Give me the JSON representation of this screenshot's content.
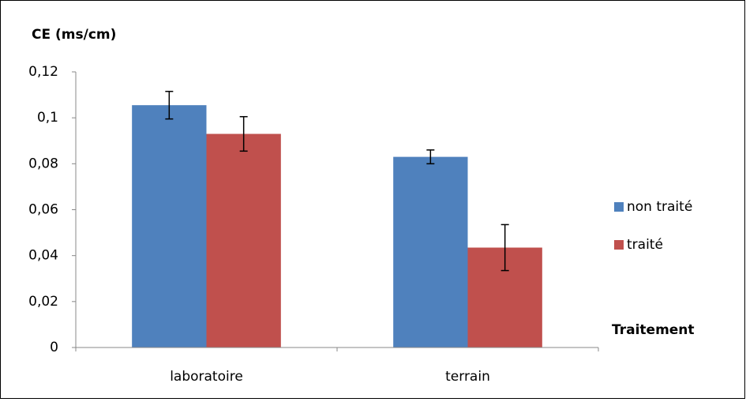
{
  "chart_data": {
    "type": "bar",
    "y_label": "CE (ms/cm)",
    "x_label": "Traitement",
    "categories": [
      "laboratoire",
      "terrain"
    ],
    "series": [
      {
        "name": "non traité",
        "color": "#4f81bd",
        "values": [
          0.1055,
          0.083
        ],
        "errors": [
          0.006,
          0.003
        ]
      },
      {
        "name": "traité",
        "color": "#c0504d",
        "values": [
          0.093,
          0.0435
        ],
        "errors": [
          0.0075,
          0.01
        ]
      }
    ],
    "ylim": [
      0,
      0.12
    ],
    "yticks": [
      0,
      {
        "value": 0.02,
        "label": "0,02"
      },
      {
        "value": 0.04,
        "label": "0,04"
      },
      {
        "value": 0.06,
        "label": "0,06"
      },
      {
        "value": 0.08,
        "label": "0,08"
      },
      {
        "value": 0.1,
        "label": "0,1"
      },
      {
        "value": 0.12,
        "label": "0,12"
      }
    ],
    "grid": false,
    "legend": "right"
  }
}
